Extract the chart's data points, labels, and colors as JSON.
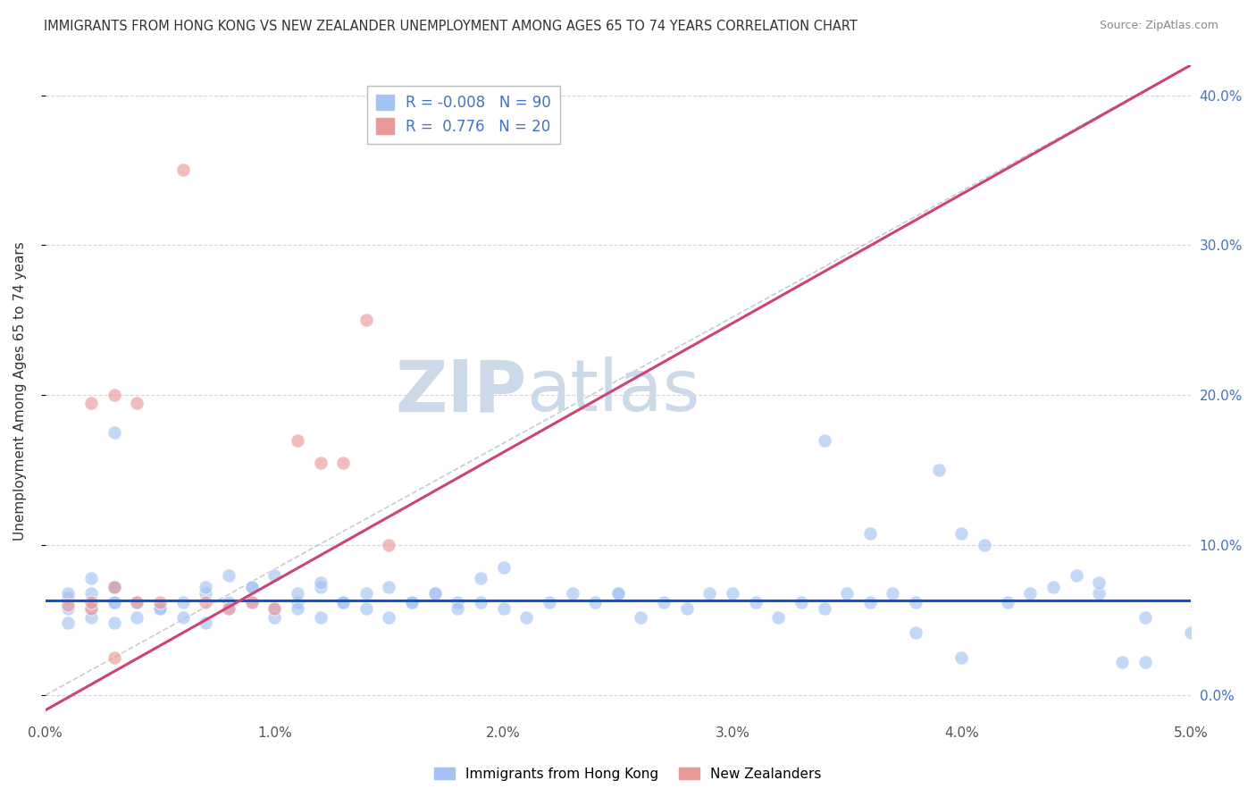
{
  "title": "IMMIGRANTS FROM HONG KONG VS NEW ZEALANDER UNEMPLOYMENT AMONG AGES 65 TO 74 YEARS CORRELATION CHART",
  "source": "Source: ZipAtlas.com",
  "ylabel": "Unemployment Among Ages 65 to 74 years",
  "xlim": [
    0.0,
    0.05
  ],
  "ylim": [
    -0.015,
    0.42
  ],
  "yticks": [
    0.0,
    0.1,
    0.2,
    0.3,
    0.4
  ],
  "ytick_labels_right": [
    "0.0%",
    "10.0%",
    "20.0%",
    "30.0%",
    "40.0%"
  ],
  "xticks": [
    0.0,
    0.01,
    0.02,
    0.03,
    0.04,
    0.05
  ],
  "xtick_labels": [
    "0.0%",
    "1.0%",
    "2.0%",
    "3.0%",
    "4.0%",
    "5.0%"
  ],
  "blue_color": "#a4c2f4",
  "pink_color": "#ea9999",
  "blue_line_color": "#1155cc",
  "pink_line_color": "#cc4477",
  "watermark_zip": "ZIP",
  "watermark_atlas": "atlas",
  "watermark_color": "#ccd9e8",
  "blue_scatter_x": [
    0.001,
    0.002,
    0.001,
    0.003,
    0.003,
    0.002,
    0.003,
    0.001,
    0.002,
    0.003,
    0.004,
    0.005,
    0.006,
    0.007,
    0.007,
    0.008,
    0.008,
    0.009,
    0.009,
    0.01,
    0.01,
    0.011,
    0.011,
    0.012,
    0.012,
    0.013,
    0.014,
    0.015,
    0.016,
    0.017,
    0.018,
    0.019,
    0.001,
    0.002,
    0.003,
    0.004,
    0.005,
    0.006,
    0.007,
    0.008,
    0.009,
    0.01,
    0.011,
    0.012,
    0.013,
    0.014,
    0.015,
    0.016,
    0.017,
    0.018,
    0.019,
    0.02,
    0.021,
    0.022,
    0.023,
    0.024,
    0.025,
    0.026,
    0.027,
    0.028,
    0.029,
    0.03,
    0.031,
    0.032,
    0.033,
    0.034,
    0.035,
    0.036,
    0.037,
    0.038,
    0.039,
    0.04,
    0.041,
    0.042,
    0.043,
    0.044,
    0.045,
    0.046,
    0.047,
    0.048,
    0.034,
    0.036,
    0.038,
    0.04,
    0.046,
    0.048,
    0.05,
    0.003,
    0.02,
    0.025
  ],
  "blue_scatter_y": [
    0.065,
    0.068,
    0.058,
    0.062,
    0.072,
    0.078,
    0.062,
    0.068,
    0.058,
    0.072,
    0.062,
    0.058,
    0.052,
    0.068,
    0.072,
    0.08,
    0.062,
    0.072,
    0.062,
    0.058,
    0.08,
    0.062,
    0.068,
    0.072,
    0.052,
    0.062,
    0.058,
    0.052,
    0.062,
    0.068,
    0.062,
    0.078,
    0.048,
    0.052,
    0.048,
    0.052,
    0.058,
    0.062,
    0.048,
    0.058,
    0.072,
    0.052,
    0.058,
    0.075,
    0.062,
    0.068,
    0.072,
    0.062,
    0.068,
    0.058,
    0.062,
    0.058,
    0.052,
    0.062,
    0.068,
    0.062,
    0.068,
    0.052,
    0.062,
    0.058,
    0.068,
    0.068,
    0.062,
    0.052,
    0.062,
    0.058,
    0.068,
    0.062,
    0.068,
    0.062,
    0.15,
    0.108,
    0.1,
    0.062,
    0.068,
    0.072,
    0.08,
    0.068,
    0.022,
    0.022,
    0.17,
    0.108,
    0.042,
    0.025,
    0.075,
    0.052,
    0.042,
    0.175,
    0.085,
    0.068
  ],
  "pink_scatter_x": [
    0.001,
    0.002,
    0.003,
    0.004,
    0.005,
    0.006,
    0.007,
    0.008,
    0.009,
    0.01,
    0.011,
    0.012,
    0.013,
    0.014,
    0.015,
    0.003,
    0.004,
    0.002,
    0.003,
    0.002
  ],
  "pink_scatter_y": [
    0.06,
    0.058,
    0.072,
    0.062,
    0.062,
    0.35,
    0.062,
    0.058,
    0.062,
    0.058,
    0.17,
    0.155,
    0.155,
    0.25,
    0.1,
    0.2,
    0.195,
    0.062,
    0.025,
    0.195
  ],
  "pink_line_x0": 0.0,
  "pink_line_y0": -0.01,
  "pink_line_x1": 0.05,
  "pink_line_y1": 0.42,
  "blue_line_y_const": 0.063,
  "legend_items": [
    {
      "label_r": "R = -0.008",
      "label_n": "N = 90",
      "color": "#a4c2f4"
    },
    {
      "label_r": "R =  0.776",
      "label_n": "N = 20",
      "color": "#ea9999"
    }
  ],
  "bottom_legend": [
    {
      "label": "Immigrants from Hong Kong",
      "color": "#a4c2f4"
    },
    {
      "label": "New Zealanders",
      "color": "#ea9999"
    }
  ]
}
